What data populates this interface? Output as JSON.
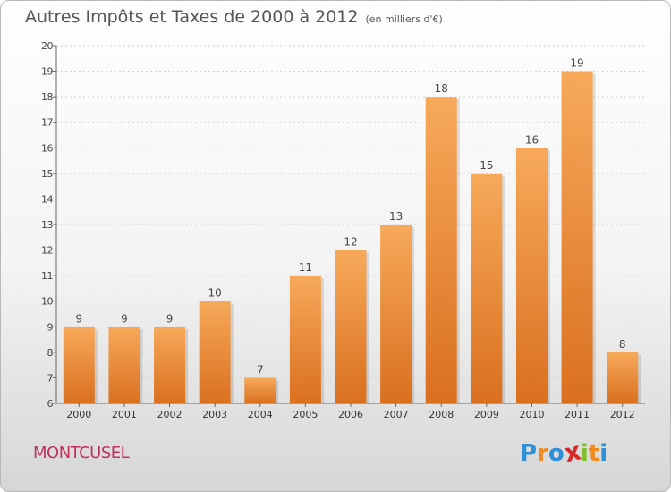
{
  "header": {
    "title": "Autres Impôts et Taxes de 2000 à 2012",
    "unit": "(en milliers d'€)"
  },
  "footer": {
    "commune": "MONTCUSEL",
    "logo_letters": [
      "P",
      "r",
      "o",
      "x",
      "i",
      "t",
      "i"
    ],
    "logo_colors": [
      "#2f8fd8",
      "#f08a1c",
      "#2f8fd8",
      "#d82828",
      "#7fbf2a",
      "#f08a1c",
      "#2f8fd8"
    ]
  },
  "colors": {
    "bar_light": "#f7a95a",
    "bar_dark": "#d9701f",
    "axis": "#666666",
    "grid": "#cfcfcf"
  },
  "chart_data": {
    "type": "bar",
    "title": "Autres Impôts et Taxes de 2000 à 2012",
    "subtitle": "(en milliers d'€)",
    "xlabel": "",
    "ylabel": "",
    "categories": [
      "2000",
      "2001",
      "2002",
      "2003",
      "2004",
      "2005",
      "2006",
      "2007",
      "2008",
      "2009",
      "2010",
      "2011",
      "2012"
    ],
    "values": [
      9,
      9,
      9,
      10,
      7,
      11,
      12,
      13,
      18,
      15,
      16,
      19,
      8
    ],
    "ylim": [
      6,
      20
    ],
    "yticks": [
      6,
      7,
      8,
      9,
      10,
      11,
      12,
      13,
      14,
      15,
      16,
      17,
      18,
      19,
      20
    ],
    "grid": true,
    "data_labels": true
  }
}
